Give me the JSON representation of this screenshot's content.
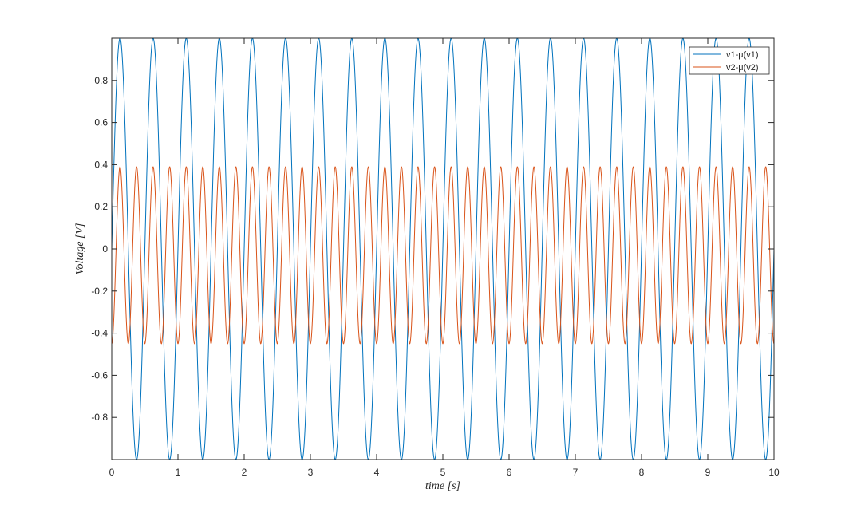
{
  "chart_data": {
    "type": "line",
    "title": "",
    "xlabel": "time [s]",
    "ylabel": "Voltage [V]",
    "xlim": [
      0,
      10
    ],
    "ylim": [
      -1,
      1
    ],
    "xticks": [
      "0",
      "1",
      "2",
      "3",
      "4",
      "5",
      "6",
      "7",
      "8",
      "9",
      "10"
    ],
    "yticks": [
      "-0.8",
      "-0.6",
      "-0.4",
      "-0.2",
      "0",
      "0.2",
      "0.4",
      "0.6",
      "0.8"
    ],
    "grid": false,
    "legend_position": "top-right",
    "series": [
      {
        "name": "v1-μ(v1)",
        "color": "#0072BD",
        "frequency_hz": 2,
        "max": 1.0,
        "min": -1.0,
        "start_value": 0.0
      },
      {
        "name": "v2-μ(v2)",
        "color": "#D95319",
        "frequency_hz": 4,
        "max": 0.39,
        "min": -0.45,
        "start_value": -0.45
      }
    ]
  }
}
